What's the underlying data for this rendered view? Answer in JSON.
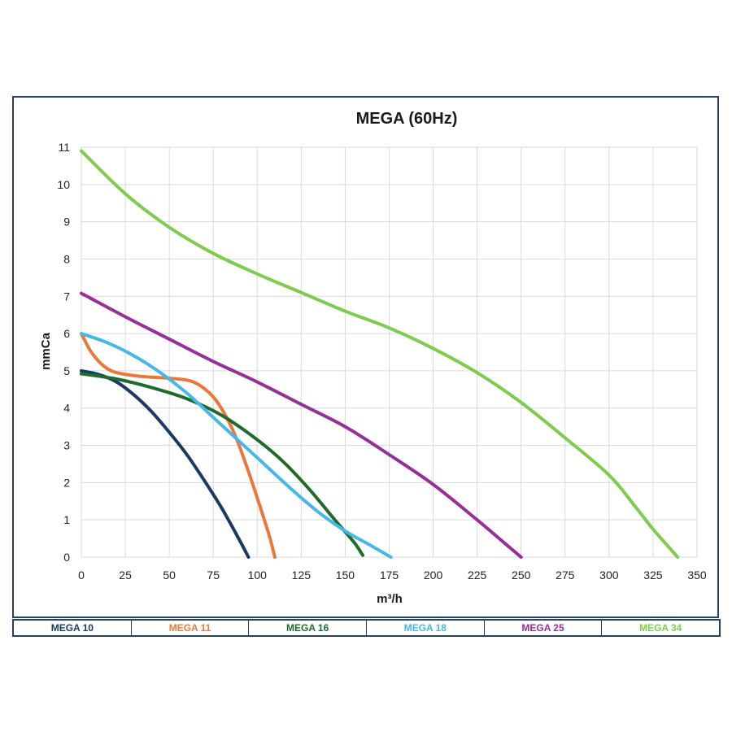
{
  "chart_data": {
    "type": "line",
    "title": "MEGA (60Hz)",
    "xlabel": "m³/h",
    "ylabel": "mmCa",
    "xlim": [
      0,
      350
    ],
    "ylim": [
      0,
      11
    ],
    "xticks": [
      "0",
      "25",
      "50",
      "75",
      "100",
      "125",
      "150",
      "175",
      "200",
      "225",
      "250",
      "275",
      "300",
      "325",
      "350"
    ],
    "yticks": [
      "0",
      "1",
      "2",
      "3",
      "4",
      "5",
      "6",
      "7",
      "8",
      "9",
      "10",
      "11"
    ],
    "grid": true,
    "legend_position": "bottom",
    "series": [
      {
        "name": "MEGA 10",
        "color": "#1b3a63",
        "points": [
          [
            0,
            5.0
          ],
          [
            10,
            4.9
          ],
          [
            20,
            4.7
          ],
          [
            30,
            4.35
          ],
          [
            40,
            3.9
          ],
          [
            50,
            3.35
          ],
          [
            60,
            2.75
          ],
          [
            70,
            2.05
          ],
          [
            80,
            1.3
          ],
          [
            90,
            0.45
          ],
          [
            95,
            0.0
          ]
        ]
      },
      {
        "name": "MEGA 11",
        "color": "#e9783a",
        "points": [
          [
            0,
            6.0
          ],
          [
            5,
            5.55
          ],
          [
            10,
            5.25
          ],
          [
            15,
            5.05
          ],
          [
            20,
            4.95
          ],
          [
            30,
            4.87
          ],
          [
            40,
            4.83
          ],
          [
            50,
            4.8
          ],
          [
            60,
            4.75
          ],
          [
            67,
            4.62
          ],
          [
            75,
            4.3
          ],
          [
            82,
            3.8
          ],
          [
            88,
            3.2
          ],
          [
            95,
            2.3
          ],
          [
            102,
            1.3
          ],
          [
            107,
            0.55
          ],
          [
            110,
            0.0
          ]
        ]
      },
      {
        "name": "MEGA 16",
        "color": "#1f6b2c",
        "points": [
          [
            0,
            4.92
          ],
          [
            20,
            4.78
          ],
          [
            40,
            4.55
          ],
          [
            60,
            4.25
          ],
          [
            80,
            3.8
          ],
          [
            100,
            3.15
          ],
          [
            115,
            2.55
          ],
          [
            130,
            1.8
          ],
          [
            145,
            0.95
          ],
          [
            155,
            0.4
          ],
          [
            160,
            0.05
          ]
        ]
      },
      {
        "name": "MEGA 18",
        "color": "#46b8e6",
        "points": [
          [
            0,
            6.0
          ],
          [
            15,
            5.75
          ],
          [
            30,
            5.4
          ],
          [
            45,
            4.95
          ],
          [
            60,
            4.4
          ],
          [
            75,
            3.75
          ],
          [
            90,
            3.1
          ],
          [
            105,
            2.45
          ],
          [
            120,
            1.8
          ],
          [
            135,
            1.2
          ],
          [
            150,
            0.7
          ],
          [
            165,
            0.3
          ],
          [
            176,
            0.0
          ]
        ]
      },
      {
        "name": "MEGA 25",
        "color": "#962f9a",
        "points": [
          [
            0,
            7.08
          ],
          [
            25,
            6.45
          ],
          [
            50,
            5.85
          ],
          [
            75,
            5.25
          ],
          [
            100,
            4.7
          ],
          [
            125,
            4.1
          ],
          [
            150,
            3.5
          ],
          [
            175,
            2.75
          ],
          [
            200,
            1.95
          ],
          [
            225,
            1.0
          ],
          [
            240,
            0.4
          ],
          [
            250,
            0.0
          ]
        ]
      },
      {
        "name": "MEGA 34",
        "color": "#7ecb4e",
        "points": [
          [
            0,
            10.9
          ],
          [
            25,
            9.75
          ],
          [
            50,
            8.85
          ],
          [
            75,
            8.15
          ],
          [
            100,
            7.6
          ],
          [
            125,
            7.1
          ],
          [
            150,
            6.6
          ],
          [
            175,
            6.15
          ],
          [
            200,
            5.6
          ],
          [
            225,
            4.95
          ],
          [
            250,
            4.15
          ],
          [
            275,
            3.2
          ],
          [
            300,
            2.2
          ],
          [
            315,
            1.35
          ],
          [
            325,
            0.75
          ],
          [
            339,
            0.0
          ]
        ]
      }
    ]
  }
}
